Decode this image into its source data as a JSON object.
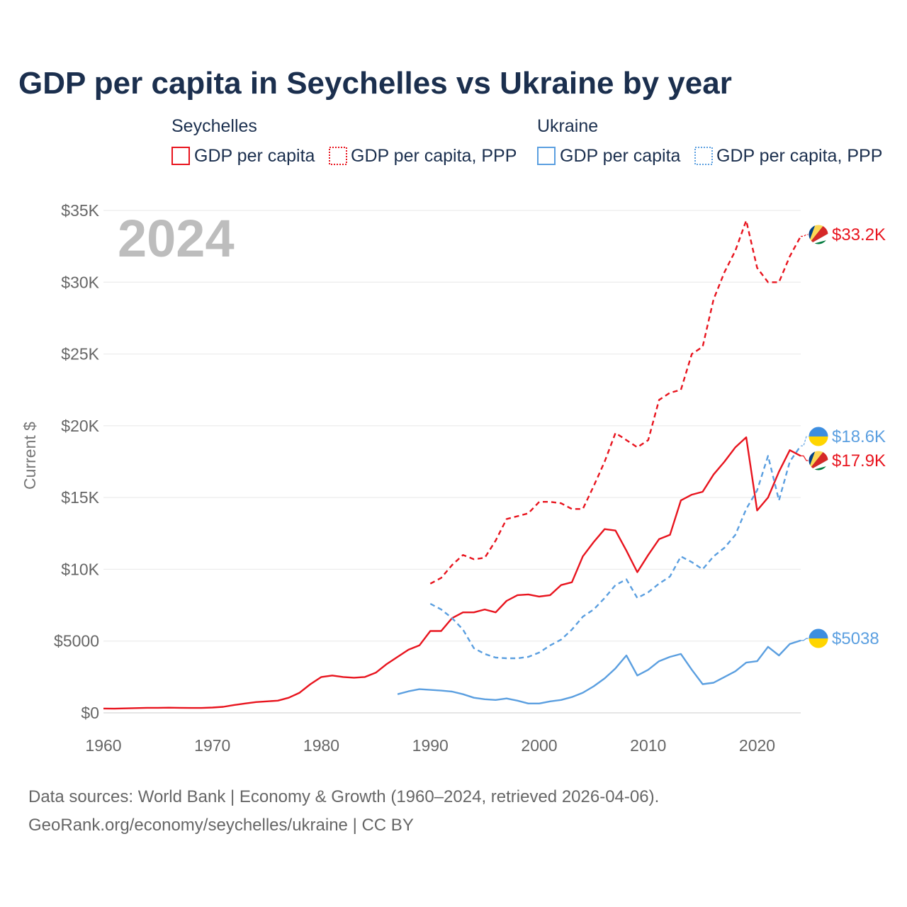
{
  "title": "GDP per capita in Seychelles vs Ukraine by year",
  "year_watermark": "2024",
  "legend": {
    "groups": [
      {
        "name": "Seychelles",
        "color": "#e8141e",
        "items": [
          {
            "label": "GDP per capita",
            "style": "solid"
          },
          {
            "label": "GDP per capita, PPP",
            "style": "dashed"
          }
        ]
      },
      {
        "name": "Ukraine",
        "color": "#5b9fe0",
        "items": [
          {
            "label": "GDP per capita",
            "style": "solid"
          },
          {
            "label": "GDP per capita, PPP",
            "style": "dashed"
          }
        ]
      }
    ]
  },
  "footer": {
    "line1": "Data sources: World Bank | Economy & Growth (1960–2024, retrieved 2026-04-06).",
    "line2": "GeoRank.org/economy/seychelles/ukraine | CC BY"
  },
  "chart_data": {
    "type": "line",
    "ylabel": "Current $",
    "xlim": [
      1960,
      2024
    ],
    "ylim": [
      0,
      35000
    ],
    "x_ticks": [
      1960,
      1970,
      1980,
      1990,
      2000,
      2010,
      2020
    ],
    "x_tick_labels": [
      "1960",
      "1970",
      "1980",
      "1990",
      "2000",
      "2010",
      "2020"
    ],
    "y_ticks": [
      0,
      5000,
      10000,
      15000,
      20000,
      25000,
      30000,
      35000
    ],
    "y_tick_labels": [
      "$0",
      "$5000",
      "$10K",
      "$15K",
      "$20K",
      "$25K",
      "$30K",
      "$35K"
    ],
    "grid": true,
    "series": [
      {
        "name": "Seychelles GDP per capita",
        "country": "Seychelles",
        "color": "#e8141e",
        "dash": false,
        "end_label": "$17.9K",
        "flag": "seychelles",
        "x": [
          1960,
          1961,
          1962,
          1963,
          1964,
          1965,
          1966,
          1967,
          1968,
          1969,
          1970,
          1971,
          1972,
          1973,
          1974,
          1975,
          1976,
          1977,
          1978,
          1979,
          1980,
          1981,
          1982,
          1983,
          1984,
          1985,
          1986,
          1987,
          1988,
          1989,
          1990,
          1991,
          1992,
          1993,
          1994,
          1995,
          1996,
          1997,
          1998,
          1999,
          2000,
          2001,
          2002,
          2003,
          2004,
          2005,
          2006,
          2007,
          2008,
          2009,
          2010,
          2011,
          2012,
          2013,
          2014,
          2015,
          2016,
          2017,
          2018,
          2019,
          2020,
          2021,
          2022,
          2023,
          2024
        ],
        "values": [
          300,
          290,
          310,
          330,
          350,
          350,
          360,
          350,
          340,
          340,
          370,
          420,
          550,
          650,
          750,
          800,
          850,
          1050,
          1400,
          2000,
          2500,
          2600,
          2500,
          2450,
          2500,
          2800,
          3400,
          3900,
          4400,
          4700,
          5700,
          5700,
          6600,
          7000,
          7000,
          7200,
          7000,
          7800,
          8200,
          8250,
          8100,
          8200,
          8900,
          9100,
          10900,
          11900,
          12800,
          12700,
          11300,
          9800,
          11000,
          12100,
          12400,
          14800,
          15200,
          15400,
          16600,
          17500,
          18500,
          19200,
          14100,
          15000,
          16800,
          18300,
          17900
        ]
      },
      {
        "name": "Seychelles GDP per capita, PPP",
        "country": "Seychelles",
        "color": "#e8141e",
        "dash": true,
        "end_label": "$33.2K",
        "flag": "seychelles",
        "x": [
          1990,
          1991,
          1992,
          1993,
          1994,
          1995,
          1996,
          1997,
          1998,
          1999,
          2000,
          2001,
          2002,
          2003,
          2004,
          2005,
          2006,
          2007,
          2008,
          2009,
          2010,
          2011,
          2012,
          2013,
          2014,
          2015,
          2016,
          2017,
          2018,
          2019,
          2020,
          2021,
          2022,
          2023,
          2024
        ],
        "values": [
          9000,
          9400,
          10300,
          11000,
          10700,
          10800,
          12000,
          13500,
          13700,
          13900,
          14700,
          14700,
          14600,
          14200,
          14200,
          15800,
          17500,
          19500,
          19000,
          18500,
          19000,
          21800,
          22300,
          22500,
          25000,
          25500,
          28800,
          30700,
          32200,
          34300,
          31000,
          30000,
          30000,
          31800,
          33200
        ]
      },
      {
        "name": "Ukraine GDP per capita",
        "country": "Ukraine",
        "color": "#5b9fe0",
        "dash": false,
        "end_label": "$5038",
        "flag": "ukraine",
        "x": [
          1987,
          1988,
          1989,
          1990,
          1991,
          1992,
          1993,
          1994,
          1995,
          1996,
          1997,
          1998,
          1999,
          2000,
          2001,
          2002,
          2003,
          2004,
          2005,
          2006,
          2007,
          2008,
          2009,
          2010,
          2011,
          2012,
          2013,
          2014,
          2015,
          2016,
          2017,
          2018,
          2019,
          2020,
          2021,
          2022,
          2023,
          2024
        ],
        "values": [
          1300,
          1500,
          1650,
          1600,
          1550,
          1480,
          1300,
          1050,
          950,
          900,
          1000,
          850,
          650,
          650,
          800,
          900,
          1100,
          1400,
          1850,
          2400,
          3100,
          4000,
          2600,
          3000,
          3600,
          3900,
          4100,
          3000,
          2000,
          2100,
          2500,
          2900,
          3500,
          3600,
          4600,
          4000,
          4800,
          5038
        ]
      },
      {
        "name": "Ukraine GDP per capita, PPP",
        "country": "Ukraine",
        "color": "#5b9fe0",
        "dash": true,
        "end_label": "$18.6K",
        "flag": "ukraine",
        "x": [
          1990,
          1991,
          1992,
          1993,
          1994,
          1995,
          1996,
          1997,
          1998,
          1999,
          2000,
          2001,
          2002,
          2003,
          2004,
          2005,
          2006,
          2007,
          2008,
          2009,
          2010,
          2011,
          2012,
          2013,
          2014,
          2015,
          2016,
          2017,
          2018,
          2019,
          2020,
          2021,
          2022,
          2023,
          2024
        ],
        "values": [
          7600,
          7200,
          6600,
          5800,
          4500,
          4100,
          3850,
          3800,
          3800,
          3900,
          4200,
          4700,
          5100,
          5800,
          6700,
          7200,
          8000,
          8900,
          9300,
          8000,
          8400,
          9000,
          9500,
          10900,
          10500,
          10000,
          10900,
          11500,
          12400,
          14200,
          15500,
          17900,
          14800,
          17500,
          18600
        ]
      }
    ]
  }
}
